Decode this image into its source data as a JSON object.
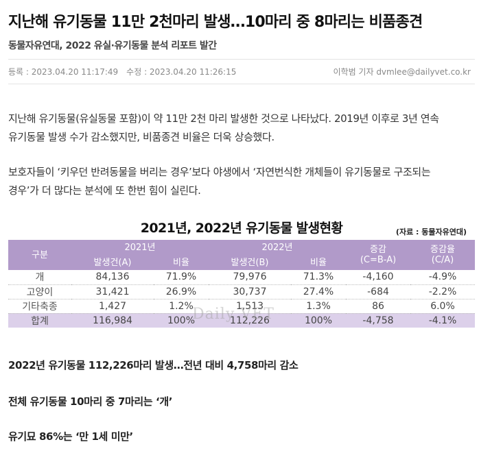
{
  "article": {
    "headline": "지난해 유기동물 11만 2천마리 발생…10마리 중 8마리는 비품종견",
    "subheadline": "동물자유연대, 2022 유실·유기동물 분석 리포트 발간",
    "registered_label": "등록 : 2023.04.20 11:17:49",
    "modified_label": "수정 : 2023.04.20 11:26:15",
    "byline": "이학범 기자 dvmlee@dailyvet.co.kr",
    "paragraph1_line1": "지난해 유기동물(유실동물 포함)이 약 11만 2천 마리 발생한 것으로 나타났다. 2019년 이후로 3년 연속",
    "paragraph1_line2": "유기동물 발생 수가 감소했지만, 비품종견 비율은 더욱 상승했다.",
    "paragraph2_line1": "보호자들이 ‘키우던 반려동물을 버리는 경우’보다 야생에서 ‘자연번식한 개체들이 유기동물로 구조되는",
    "paragraph2_line2": "경우’가 더 많다는 분석에 또 한번 힘이 실린다."
  },
  "table": {
    "title": "2021년, 2022년 유기동물 발생현황",
    "source": "(자료 : 동물자유연대)",
    "header": {
      "category": "구분",
      "year2021": "2021년",
      "year2022": "2022년",
      "count_a": "발생건(A)",
      "ratio": "비율",
      "count_b": "발생건(B)",
      "change_line1": "증감",
      "change_line2": "(C=B-A)",
      "rate_line1": "증감율",
      "rate_line2": "(C/A)"
    },
    "rows": [
      {
        "category": "개",
        "count_2021": "84,136",
        "ratio_2021": "71.9%",
        "count_2022": "79,976",
        "ratio_2022": "71.3%",
        "change": "-4,160",
        "rate": "-4.9%"
      },
      {
        "category": "고양이",
        "count_2021": "31,421",
        "ratio_2021": "26.9%",
        "count_2022": "30,737",
        "ratio_2022": "27.4%",
        "change": "-684",
        "rate": "-2.2%"
      },
      {
        "category": "기타축종",
        "count_2021": "1,427",
        "ratio_2021": "1.2%",
        "count_2022": "1,513",
        "ratio_2022": "1.3%",
        "change": "86",
        "rate": "6.0%"
      },
      {
        "category": "합계",
        "count_2021": "116,984",
        "ratio_2021": "100%",
        "count_2022": "112,226",
        "ratio_2022": "100%",
        "change": "-4,758",
        "rate": "-4.1%"
      }
    ],
    "watermark": "Daily VET"
  },
  "sections": [
    "2022년 유기동물 112,226마리 발생…전년 대비 4,758마리 감소",
    "전체 유기동물 10마리 중 7마리는 ‘개’",
    "유기묘 86%는 ‘만 1세 미만’"
  ],
  "colors": {
    "header_purple": "#b19ac9",
    "total_row_lavender": "#dcd0ea"
  }
}
